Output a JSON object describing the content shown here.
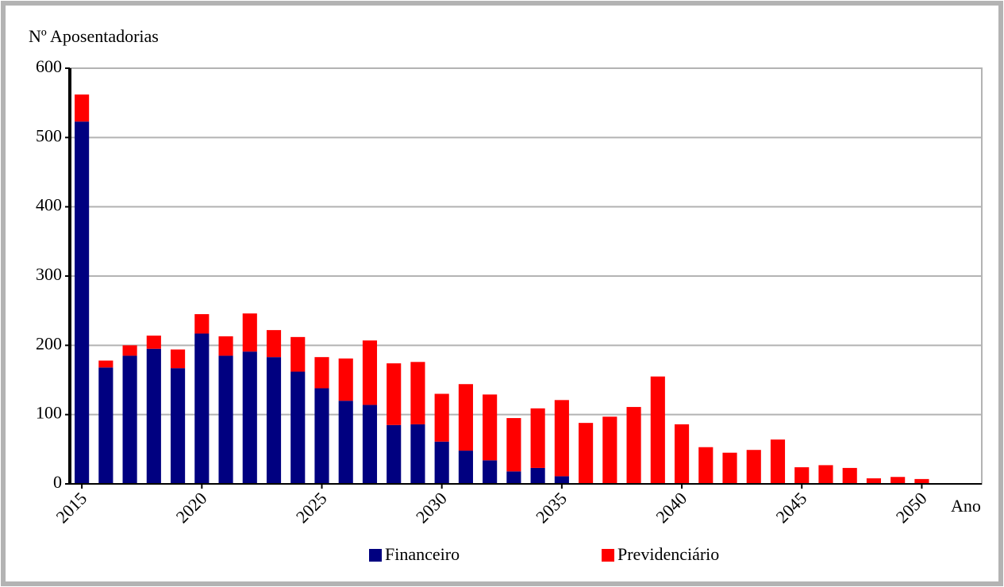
{
  "chart_data": {
    "type": "bar",
    "stacked": true,
    "y_label": "Nº Aposentadorias",
    "x_label": "Ano",
    "x": [
      2015,
      2016,
      2017,
      2018,
      2019,
      2020,
      2021,
      2022,
      2023,
      2024,
      2025,
      2026,
      2027,
      2028,
      2029,
      2030,
      2031,
      2032,
      2033,
      2034,
      2035,
      2036,
      2037,
      2038,
      2039,
      2040,
      2041,
      2042,
      2043,
      2044,
      2045,
      2046,
      2047,
      2048,
      2049,
      2050
    ],
    "series": [
      {
        "name": "Financeiro",
        "color": "#000080",
        "values": [
          523,
          168,
          185,
          195,
          167,
          217,
          185,
          191,
          183,
          162,
          138,
          120,
          114,
          85,
          86,
          61,
          48,
          34,
          18,
          23,
          11,
          0,
          0,
          0,
          0,
          0,
          0,
          0,
          0,
          0,
          0,
          0,
          0,
          0,
          0,
          0
        ]
      },
      {
        "name": "Previdenciário",
        "color": "#ff0000",
        "values": [
          39,
          10,
          15,
          19,
          27,
          28,
          28,
          55,
          39,
          50,
          45,
          61,
          93,
          89,
          90,
          69,
          96,
          95,
          77,
          86,
          110,
          88,
          97,
          111,
          155,
          86,
          53,
          45,
          49,
          64,
          24,
          27,
          23,
          8,
          10,
          7
        ]
      }
    ],
    "xlim": [
      2014.5,
      2052.5
    ],
    "xticks": [
      2015,
      2020,
      2025,
      2030,
      2035,
      2040,
      2045,
      2050
    ],
    "ylim": [
      0,
      600
    ],
    "yticks": [
      0,
      100,
      200,
      300,
      400,
      500,
      600
    ],
    "grid": true
  }
}
